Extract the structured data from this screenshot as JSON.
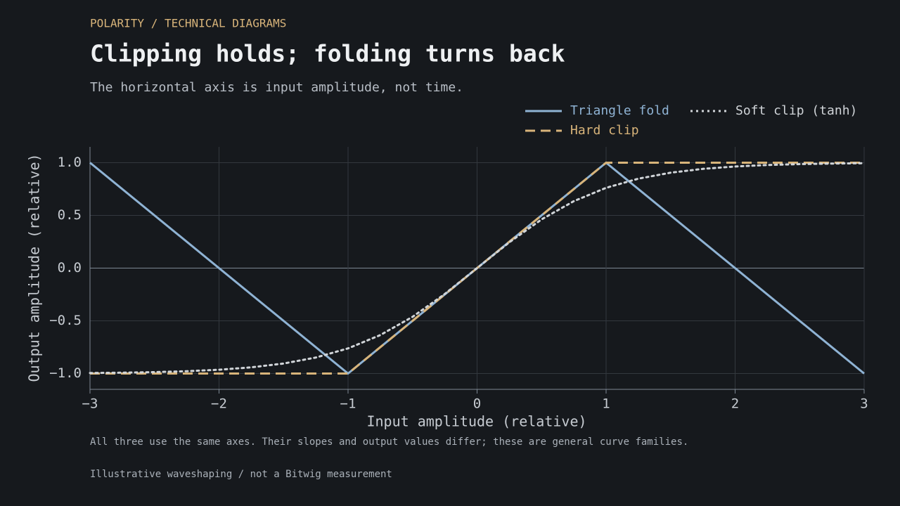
{
  "eyebrow": "POLARITY / TECHNICAL DIAGRAMS",
  "title": "Clipping holds; folding turns back",
  "subtitle": "The horizontal axis is input amplitude, not time.",
  "footnote": "All three use the same axes. Their slopes and output values differ; these are general curve families.",
  "source": "Illustrative waveshaping / not a Bitwig measurement",
  "chart_data": {
    "type": "line",
    "x_label": "Input amplitude (relative)",
    "y_label": "Output amplitude (relative)",
    "xlim": [
      -3,
      3
    ],
    "ylim": [
      -1.15,
      1.15
    ],
    "xticks": [
      {
        "value": -3,
        "label": "−3"
      },
      {
        "value": -2,
        "label": "−2"
      },
      {
        "value": -1,
        "label": "−1"
      },
      0,
      1,
      2,
      3
    ],
    "yticks": [
      {
        "value": -1,
        "label": "−1.0"
      },
      {
        "value": -0.5,
        "label": "−0.5"
      },
      {
        "value": 0,
        "label": "0.0"
      },
      {
        "value": 0.5,
        "label": "0.5"
      },
      {
        "value": 1,
        "label": "1.0"
      }
    ],
    "grid": true,
    "series": [
      {
        "name": "Triangle fold",
        "color": "#8fb3d4",
        "style": "solid",
        "x": [
          -3,
          -1,
          1,
          3
        ],
        "values": [
          1,
          -1,
          1,
          -1
        ]
      },
      {
        "name": "Hard clip",
        "color": "#d8b47a",
        "style": "dashed",
        "x": [
          -3,
          -1,
          1,
          3
        ],
        "values": [
          -1,
          -1,
          1,
          1
        ]
      },
      {
        "name": "Soft clip (tanh)",
        "color": "#d0d4d8",
        "style": "dotted",
        "x": [
          -3,
          -2.75,
          -2.5,
          -2.25,
          -2,
          -1.75,
          -1.5,
          -1.25,
          -1,
          -0.75,
          -0.5,
          -0.25,
          0,
          0.25,
          0.5,
          0.75,
          1,
          1.25,
          1.5,
          1.75,
          2,
          2.25,
          2.5,
          2.75,
          3
        ],
        "values": [
          -0.9951,
          -0.9918,
          -0.9866,
          -0.978,
          -0.964,
          -0.9414,
          -0.9051,
          -0.8483,
          -0.7616,
          -0.6351,
          -0.4621,
          -0.2449,
          0,
          0.2449,
          0.4621,
          0.6351,
          0.7616,
          0.8483,
          0.9051,
          0.9414,
          0.964,
          0.978,
          0.9866,
          0.9918,
          0.9951
        ]
      }
    ]
  }
}
